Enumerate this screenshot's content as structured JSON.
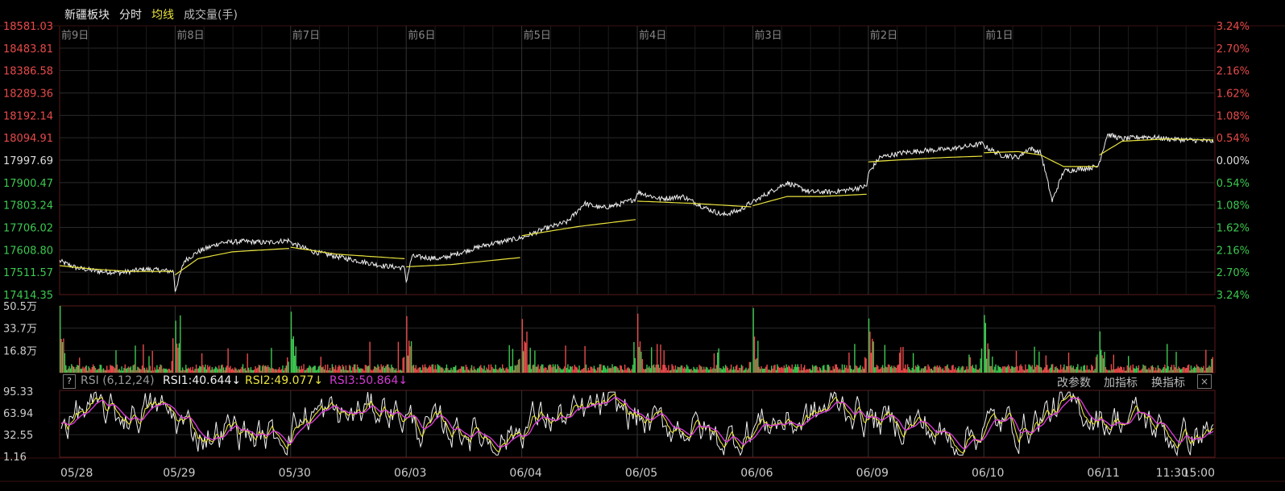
{
  "header": {
    "title": "新疆板块",
    "tab_minute": "分时",
    "tab_avg": "均线",
    "tab_volume": "成交量(手)"
  },
  "indicator": {
    "help": "?",
    "name": "RSI (6,12,24)",
    "rsi1": "RSI1:40.644↓",
    "rsi2": "RSI2:49.077↓",
    "rsi3": "RSI3:50.864↓",
    "btn_params": "改参数",
    "btn_add": "加指标",
    "btn_switch": "换指标",
    "btn_close": "×"
  },
  "colors": {
    "price": "#f0f0f0",
    "avg": "#e8e23c",
    "up": "#e84a4a",
    "down": "#3cc850",
    "rsi1": "#f0f0f0",
    "rsi2": "#e8e23c",
    "rsi3": "#d43ad4",
    "grid": "#2a2a2a",
    "border": "#5a1a1a"
  },
  "chart_data": {
    "type": "line",
    "price_axis": {
      "labels": [
        "18581.03",
        "18483.81",
        "18386.58",
        "18289.36",
        "18192.14",
        "18094.91",
        "17997.69",
        "17900.47",
        "17803.24",
        "17706.02",
        "17608.80",
        "17511.57",
        "17414.35"
      ],
      "min": 17414.35,
      "max": 18581.03,
      "base": 17997.69
    },
    "pct_axis": {
      "labels": [
        "3.24%",
        "2.70%",
        "2.16%",
        "1.62%",
        "1.08%",
        "0.54%",
        "0.00%",
        "0.54%",
        "1.08%",
        "1.62%",
        "2.16%",
        "2.70%",
        "3.24%"
      ]
    },
    "day_labels": [
      "前9日",
      "前8日",
      "前7日",
      "前6日",
      "前5日",
      "前4日",
      "前3日",
      "前2日",
      "前1日"
    ],
    "x_labels": [
      "05/28",
      "05/29",
      "05/30",
      "06/03",
      "06/04",
      "06/05",
      "06/06",
      "06/09",
      "06/10",
      "06/11",
      "11:30",
      "15:00"
    ],
    "series": [
      {
        "name": "",
        "segments": [
          [
            [
              0,
              17560
            ],
            [
              0.15,
              17530
            ],
            [
              0.35,
              17515
            ],
            [
              0.55,
              17510
            ],
            [
              0.75,
              17525
            ],
            [
              1,
              17515
            ]
          ],
          [
            [
              0,
              17430
            ],
            [
              0.08,
              17560
            ],
            [
              0.2,
              17600
            ],
            [
              0.4,
              17640
            ],
            [
              0.6,
              17645
            ],
            [
              0.8,
              17640
            ],
            [
              1,
              17650
            ]
          ],
          [
            [
              0,
              17640
            ],
            [
              0.2,
              17600
            ],
            [
              0.4,
              17580
            ],
            [
              0.6,
              17560
            ],
            [
              0.8,
              17540
            ],
            [
              1,
              17530
            ]
          ],
          [
            [
              0,
              17470
            ],
            [
              0.05,
              17580
            ],
            [
              0.3,
              17570
            ],
            [
              0.5,
              17600
            ],
            [
              0.7,
              17630
            ],
            [
              1,
              17660
            ]
          ],
          [
            [
              0,
              17660
            ],
            [
              0.2,
              17700
            ],
            [
              0.4,
              17730
            ],
            [
              0.55,
              17810
            ],
            [
              0.7,
              17790
            ],
            [
              0.85,
              17805
            ],
            [
              1,
              17830
            ]
          ],
          [
            [
              0,
              17860
            ],
            [
              0.2,
              17830
            ],
            [
              0.4,
              17840
            ],
            [
              0.6,
              17790
            ],
            [
              0.75,
              17760
            ],
            [
              0.9,
              17780
            ],
            [
              1,
              17815
            ]
          ],
          [
            [
              0,
              17815
            ],
            [
              0.15,
              17860
            ],
            [
              0.3,
              17900
            ],
            [
              0.5,
              17860
            ],
            [
              0.7,
              17860
            ],
            [
              0.85,
              17870
            ],
            [
              1,
              17885
            ]
          ],
          [
            [
              0,
              17940
            ],
            [
              0.1,
              18010
            ],
            [
              0.3,
              18030
            ],
            [
              0.5,
              18040
            ],
            [
              0.7,
              18045
            ],
            [
              0.9,
              18060
            ],
            [
              1,
              18070
            ]
          ],
          [
            [
              0,
              18060
            ],
            [
              0.15,
              18020
            ],
            [
              0.3,
              18010
            ],
            [
              0.4,
              18050
            ],
            [
              0.5,
              18030
            ],
            [
              0.6,
              17820
            ],
            [
              0.7,
              17950
            ],
            [
              0.85,
              17960
            ],
            [
              1,
              17970
            ]
          ],
          [
            [
              0,
              17990
            ],
            [
              0.07,
              18110
            ],
            [
              0.2,
              18090
            ],
            [
              0.4,
              18100
            ],
            [
              0.6,
              18090
            ],
            [
              0.8,
              18085
            ],
            [
              1,
              18080
            ]
          ]
        ]
      },
      {
        "name": "",
        "segments": [
          [
            [
              0,
              17540
            ],
            [
              0.3,
              17525
            ],
            [
              0.6,
              17515
            ],
            [
              1,
              17515
            ]
          ],
          [
            [
              0,
              17500
            ],
            [
              0.2,
              17570
            ],
            [
              0.5,
              17600
            ],
            [
              1,
              17615
            ]
          ],
          [
            [
              0,
              17620
            ],
            [
              0.4,
              17590
            ],
            [
              1,
              17570
            ]
          ],
          [
            [
              0,
              17535
            ],
            [
              0.4,
              17545
            ],
            [
              1,
              17575
            ]
          ],
          [
            [
              0,
              17670
            ],
            [
              0.5,
              17710
            ],
            [
              1,
              17740
            ]
          ],
          [
            [
              0,
              17820
            ],
            [
              0.5,
              17810
            ],
            [
              1,
              17795
            ]
          ],
          [
            [
              0,
              17800
            ],
            [
              0.3,
              17840
            ],
            [
              0.6,
              17840
            ],
            [
              1,
              17850
            ]
          ],
          [
            [
              0,
              17990
            ],
            [
              0.3,
              18000
            ],
            [
              0.7,
              18010
            ],
            [
              1,
              18015
            ]
          ],
          [
            [
              0,
              18030
            ],
            [
              0.3,
              18035
            ],
            [
              0.5,
              18020
            ],
            [
              0.7,
              17970
            ],
            [
              1,
              17970
            ]
          ],
          [
            [
              0,
              18020
            ],
            [
              0.2,
              18080
            ],
            [
              0.6,
              18090
            ],
            [
              1,
              18085
            ]
          ]
        ]
      }
    ],
    "volume": {
      "axis_labels": [
        "50.5万",
        "33.7万",
        "16.8万"
      ],
      "max": 50.5
    },
    "rsi": {
      "axis_labels": [
        "95.33",
        "63.94",
        "32.55",
        "1.16"
      ],
      "min": 1.16,
      "max": 95.33
    },
    "grid": true
  }
}
